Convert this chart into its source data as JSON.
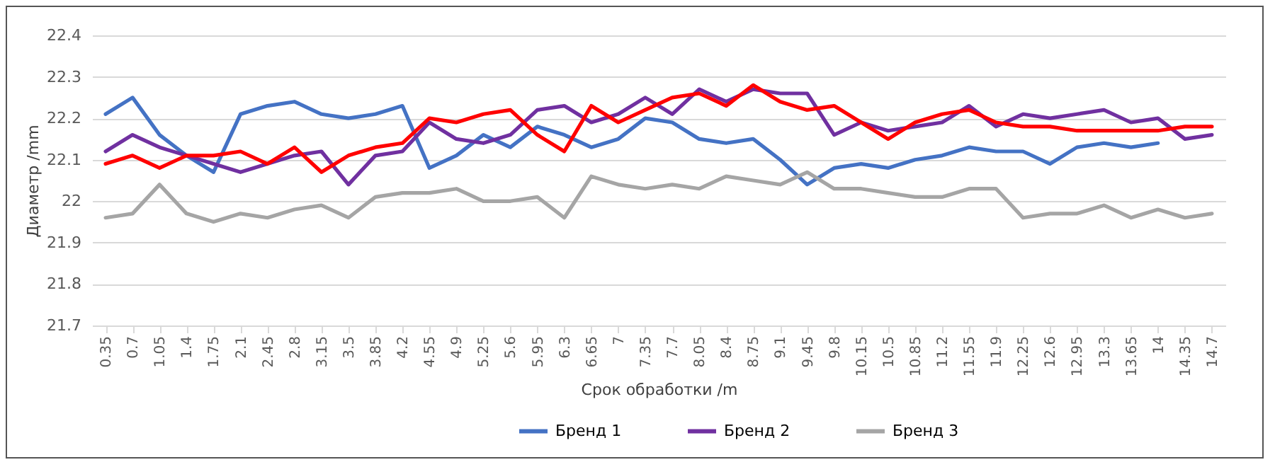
{
  "chart_data": {
    "type": "line",
    "xlabel": "Срок обработки /m",
    "ylabel": "Диаметр /mm",
    "categories": [
      "0.35",
      "0.7",
      "1.05",
      "1.4",
      "1.75",
      "2.1",
      "2.45",
      "2.8",
      "3.15",
      "3.5",
      "3.85",
      "4.2",
      "4.55",
      "4.9",
      "5.25",
      "5.6",
      "5.95",
      "6.3",
      "6.65",
      "7",
      "7.35",
      "7.7",
      "8.05",
      "8.4",
      "8.75",
      "9.1",
      "9.45",
      "9.8",
      "10.15",
      "10.5",
      "10.85",
      "11.2",
      "11.55",
      "11.9",
      "12.25",
      "12.6",
      "12.95",
      "13.3",
      "13.65",
      "14",
      "14.35",
      "14.7"
    ],
    "series": [
      {
        "name": "Бренд 1",
        "color": "#4472c4",
        "values": [
          22.21,
          22.25,
          22.16,
          22.11,
          22.07,
          22.21,
          22.23,
          22.24,
          22.21,
          22.2,
          22.21,
          22.23,
          22.08,
          22.11,
          22.16,
          22.13,
          22.18,
          22.16,
          22.13,
          22.15,
          22.2,
          22.19,
          22.15,
          22.14,
          22.15,
          22.1,
          22.04,
          22.08,
          22.09,
          22.08,
          22.1,
          22.11,
          22.13,
          22.12,
          22.12,
          22.09,
          22.13,
          22.14,
          22.13,
          22.14,
          null,
          null
        ]
      },
      {
        "name": "Бренд 2",
        "color": "#7030a0",
        "values": [
          22.12,
          22.16,
          22.13,
          22.11,
          22.09,
          22.07,
          22.09,
          22.11,
          22.12,
          22.04,
          22.11,
          22.12,
          22.19,
          22.15,
          22.14,
          22.16,
          22.22,
          22.23,
          22.19,
          22.21,
          22.25,
          22.21,
          22.27,
          22.24,
          22.27,
          22.26,
          22.26,
          22.16,
          22.19,
          22.17,
          22.18,
          22.19,
          22.23,
          22.18,
          22.21,
          22.2,
          22.21,
          22.22,
          22.19,
          22.2,
          22.15,
          22.16
        ]
      },
      {
        "name": "Бренд 3",
        "color": "#a5a5a5",
        "values": [
          21.96,
          21.97,
          22.04,
          21.97,
          21.95,
          21.97,
          21.96,
          21.98,
          21.99,
          21.96,
          22.01,
          22.02,
          22.02,
          22.03,
          22.0,
          22.0,
          22.01,
          21.96,
          22.06,
          22.04,
          22.03,
          22.04,
          22.03,
          22.06,
          22.05,
          22.04,
          22.07,
          22.03,
          22.03,
          22.02,
          22.01,
          22.01,
          22.03,
          22.03,
          21.96,
          21.97,
          21.97,
          21.99,
          21.96,
          21.98,
          21.96,
          21.97
        ]
      },
      {
        "color": "#ff0000",
        "values": [
          22.09,
          22.11,
          22.08,
          22.11,
          22.11,
          22.12,
          22.09,
          22.13,
          22.07,
          22.11,
          22.13,
          22.14,
          22.2,
          22.19,
          22.21,
          22.22,
          22.16,
          22.12,
          22.23,
          22.19,
          22.22,
          22.25,
          22.26,
          22.23,
          22.28,
          22.24,
          22.22,
          22.23,
          22.19,
          22.15,
          22.19,
          22.21,
          22.22,
          22.19,
          22.18,
          22.18,
          22.17,
          22.17,
          22.17,
          22.17,
          22.18,
          22.18
        ]
      }
    ],
    "ylim": [
      21.7,
      22.4
    ],
    "yticks": [
      21.7,
      21.8,
      21.9,
      22,
      22.1,
      22.2,
      22.3,
      22.4
    ],
    "grid": "y",
    "legend": "bottom",
    "marker": "none",
    "line_style": "solid"
  }
}
